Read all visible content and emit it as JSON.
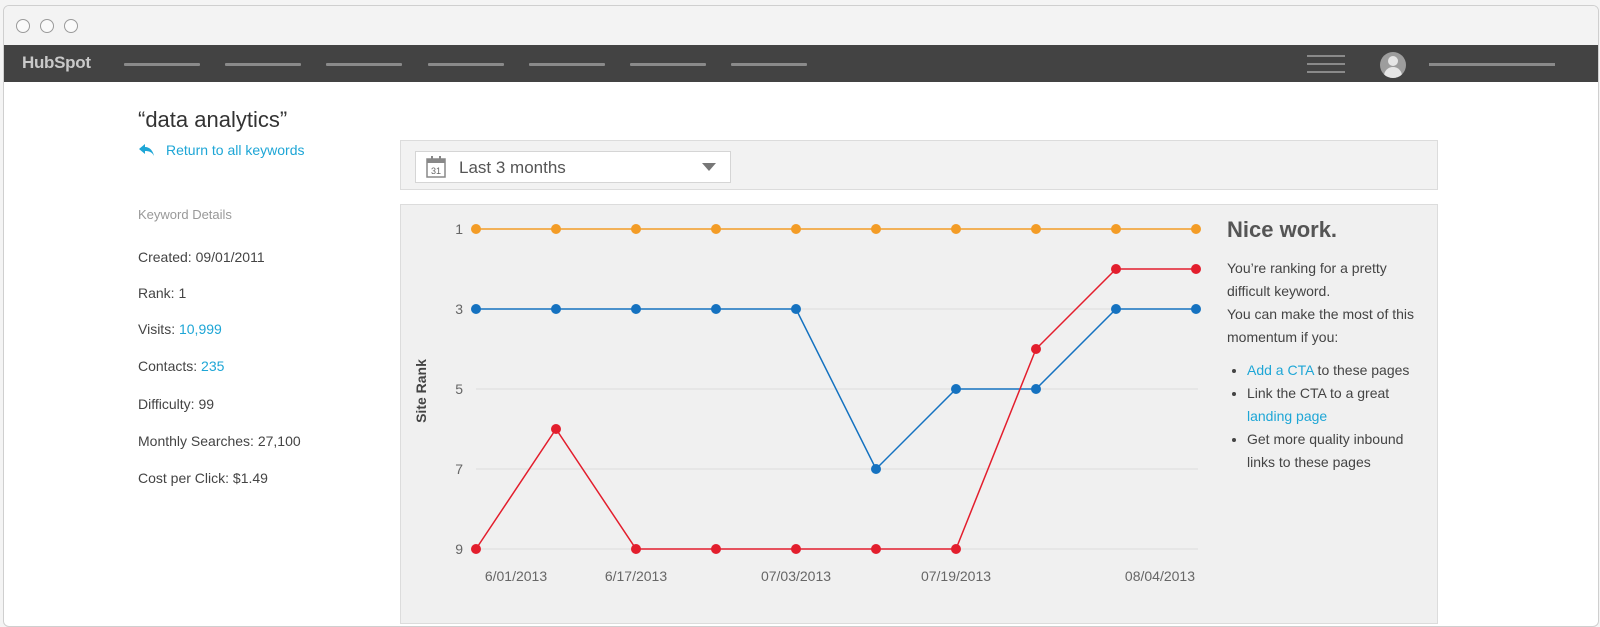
{
  "nav": {
    "logo": "HubSpot"
  },
  "keyword": {
    "title": "“data analytics”",
    "back_link": "Return to all keywords"
  },
  "details": {
    "heading": "Keyword Details",
    "created_label": "Created:",
    "created": "09/01/2011",
    "rank_label": "Rank:",
    "rank": "1",
    "visits_label": "Visits:",
    "visits": "10,999",
    "contacts_label": "Contacts:",
    "contacts": "235",
    "difficulty_label": "Difficulty:",
    "difficulty": "99",
    "searches_label": "Monthly Searches:",
    "searches": "27,100",
    "cpc_label": "Cost per Click:",
    "cpc": "$1.49"
  },
  "filter": {
    "date_range": "Last 3 months",
    "calendar_day": "31"
  },
  "advice": {
    "heading": "Nice work.",
    "para1": "You’re ranking for a pretty difficult keyword.",
    "para2": "You can make the most of this momentum if you:",
    "item1_link": "Add a CTA",
    "item1_rest": " to these pages",
    "item2_text": "Link the CTA to a great ",
    "item2_link": "landing page",
    "item3": "Get more quality inbound links to these pages"
  },
  "colors": {
    "orange": "#f39c26",
    "blue": "#1572c0",
    "red": "#e31e2d",
    "link": "#1ea6d6"
  },
  "chart_data": {
    "type": "line",
    "ylabel": "Site Rank",
    "xlabel": "",
    "y_inverted": true,
    "ylim": [
      1,
      9
    ],
    "y_ticks": [
      1,
      3,
      5,
      7,
      9
    ],
    "x_tick_labels": [
      "6/01/2013",
      "6/17/2013",
      "07/03/2013",
      "07/19/2013",
      "08/04/2013"
    ],
    "points_per_series": 10,
    "grid": true,
    "series": [
      {
        "color": "#f39c26",
        "values": [
          1,
          1,
          1,
          1,
          1,
          1,
          1,
          1,
          1,
          1
        ]
      },
      {
        "color": "#1572c0",
        "values": [
          3,
          3,
          3,
          3,
          3,
          7,
          5,
          5,
          3,
          3
        ]
      },
      {
        "color": "#e31e2d",
        "values": [
          9,
          6,
          9,
          9,
          9,
          9,
          9,
          4,
          2,
          2
        ]
      }
    ]
  }
}
